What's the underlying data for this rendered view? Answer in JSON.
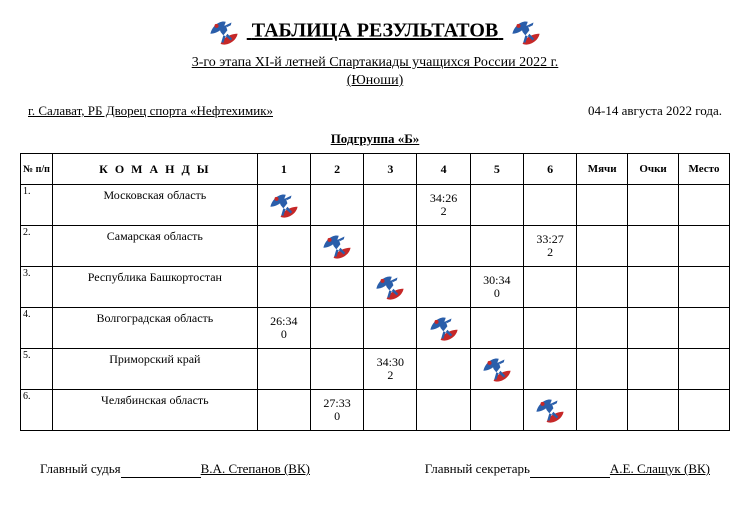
{
  "header": {
    "title": "ТАБЛИЦА РЕЗУЛЬТАТОВ",
    "subtitle_line1": "3-го этапа XI-й летней Спартакиады учащихся России 2022 г.",
    "subtitle_line2": "(Юноши)",
    "venue": "г. Салават, РБ Дворец спорта «Нефтехимик»   ",
    "dates": "04-14 августа  2022 года.",
    "group": "Подгруппа «Б»"
  },
  "table": {
    "headers": {
      "num": "№ п/п",
      "team": "К О М А Н Д Ы",
      "c1": "1",
      "c2": "2",
      "c3": "3",
      "c4": "4",
      "c5": "5",
      "c6": "6",
      "goals": "Мячи",
      "points": "Очки",
      "place": "Место"
    },
    "rows": [
      {
        "n": "1.",
        "team": "Московская область",
        "cells": [
          "DIAG",
          "",
          "",
          "34:26\n2",
          "",
          ""
        ]
      },
      {
        "n": "2.",
        "team": "Самарская область",
        "cells": [
          "",
          "DIAG",
          "",
          "",
          "",
          "33:27\n2"
        ]
      },
      {
        "n": "3.",
        "team": "Республика Башкортостан",
        "cells": [
          "",
          "",
          "DIAG",
          "",
          "30:34\n0",
          ""
        ]
      },
      {
        "n": "4.",
        "team": "Волгоградская область",
        "cells": [
          "26:34\n0",
          "",
          "",
          "DIAG",
          "",
          ""
        ]
      },
      {
        "n": "5.",
        "team": "Приморский край",
        "cells": [
          "",
          "",
          "34:30\n2",
          "",
          "DIAG",
          ""
        ]
      },
      {
        "n": "6.",
        "team": "Челябинская область",
        "cells": [
          "",
          "27:33\n0",
          "",
          "",
          "",
          "DIAG"
        ]
      }
    ]
  },
  "signatures": {
    "judge_label": "Главный судья",
    "judge_name": "В.А. Степанов (ВК)",
    "secretary_label": "Главный секретарь",
    "secretary_name": "А.Е. Слащук (ВК)"
  },
  "logo": {
    "colors": {
      "white": "#ffffff",
      "blue": "#2a5eaa",
      "red": "#c62828"
    },
    "width_small": 34
  }
}
